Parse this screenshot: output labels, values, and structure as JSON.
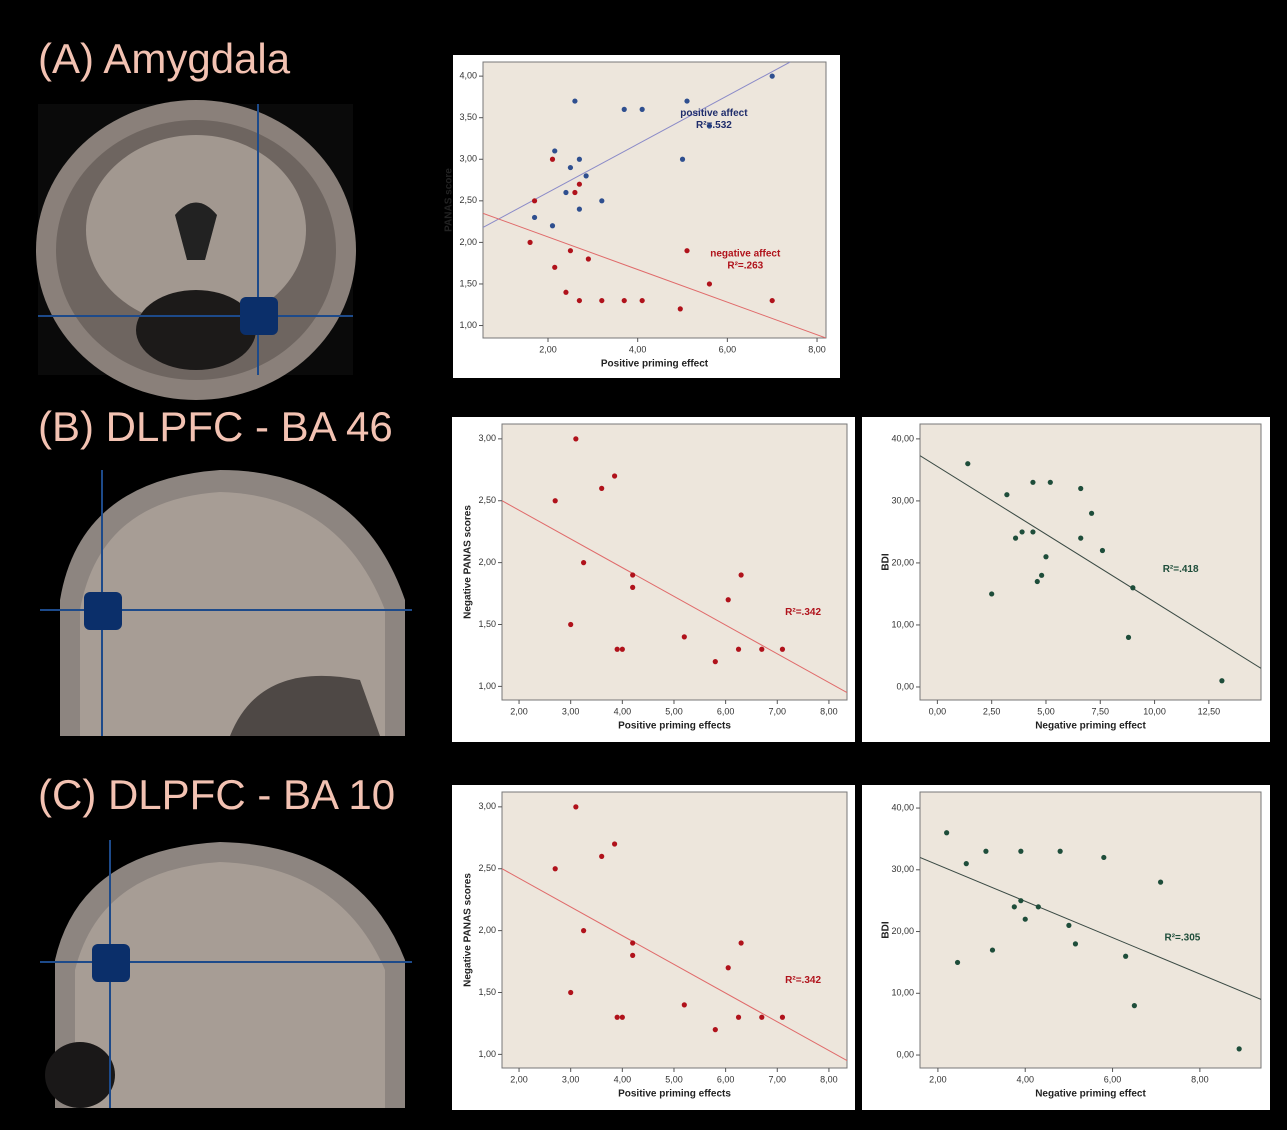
{
  "panels": [
    {
      "label": "(A) Amygdala"
    },
    {
      "label": "(B) DLPFC - BA 46"
    },
    {
      "label": "(C) DLPFC - BA 10"
    }
  ],
  "chart_data": [
    {
      "type": "scatter",
      "xlabel": "Positive priming effect",
      "ylabel": "PANAS score",
      "xlim": [
        0.55,
        8.2
      ],
      "ylim": [
        0.85,
        4.17
      ],
      "xticks": [
        {
          "value": 2,
          "label": "2,00"
        },
        {
          "value": 4,
          "label": "4,00"
        },
        {
          "value": 6,
          "label": "6,00"
        },
        {
          "value": 8,
          "label": "8,00"
        }
      ],
      "yticks": [
        {
          "value": 1,
          "label": "1,00"
        },
        {
          "value": 1.5,
          "label": "1,50"
        },
        {
          "value": 2,
          "label": "2,00"
        },
        {
          "value": 2.5,
          "label": "2,50"
        },
        {
          "value": 3,
          "label": "3,00"
        },
        {
          "value": 3.5,
          "label": "3,50"
        },
        {
          "value": 4,
          "label": "4,00"
        }
      ],
      "series": [
        {
          "color": "#2f4f8f",
          "x": [
            1.7,
            2.1,
            2.15,
            2.4,
            2.5,
            2.6,
            2.7,
            2.7,
            2.85,
            3.2,
            3.7,
            4.1,
            5.0,
            5.1,
            5.6,
            7.0
          ],
          "values": [
            2.3,
            2.2,
            3.1,
            2.6,
            2.9,
            3.7,
            3.0,
            2.4,
            2.8,
            2.5,
            3.6,
            3.6,
            3.0,
            3.7,
            3.4,
            4.0
          ]
        },
        {
          "color": "#b0121b",
          "x": [
            1.6,
            1.7,
            2.1,
            2.15,
            2.4,
            2.5,
            2.6,
            2.7,
            2.7,
            2.9,
            3.2,
            3.7,
            4.1,
            4.95,
            5.1,
            5.6,
            7.0
          ],
          "values": [
            2.0,
            2.5,
            3.0,
            1.7,
            1.4,
            1.9,
            2.6,
            2.7,
            1.3,
            1.8,
            1.3,
            1.3,
            1.3,
            1.2,
            1.9,
            1.5,
            1.3
          ]
        }
      ],
      "fits": [
        {
          "color": "#8a8ac8",
          "x": [
            0.55,
            7.4
          ],
          "y": [
            2.18,
            4.17
          ]
        },
        {
          "color": "#e06a6a",
          "x": [
            0.55,
            8.2
          ],
          "y": [
            2.35,
            0.85
          ]
        }
      ],
      "annotations": [
        {
          "text": "positive affect",
          "x": 5.7,
          "y": 3.55,
          "color": "#1f2d6b"
        },
        {
          "text": "R²=.532",
          "x": 5.7,
          "y": 3.41,
          "color": "#1f2d6b"
        },
        {
          "text": "negative affect",
          "x": 6.4,
          "y": 1.86,
          "color": "#b0121b"
        },
        {
          "text": "R²=.263",
          "x": 6.4,
          "y": 1.72,
          "color": "#b0121b"
        }
      ]
    },
    {
      "type": "scatter",
      "xlabel": "Positive priming effects",
      "ylabel": "Negative PANAS scores",
      "xlim": [
        1.67,
        8.35
      ],
      "ylim": [
        0.89,
        3.12
      ],
      "xticks": [
        {
          "value": 2,
          "label": "2,00"
        },
        {
          "value": 3,
          "label": "3,00"
        },
        {
          "value": 4,
          "label": "4,00"
        },
        {
          "value": 5,
          "label": "5,00"
        },
        {
          "value": 6,
          "label": "6,00"
        },
        {
          "value": 7,
          "label": "7,00"
        },
        {
          "value": 8,
          "label": "8,00"
        }
      ],
      "yticks": [
        {
          "value": 1,
          "label": "1,00"
        },
        {
          "value": 1.5,
          "label": "1,50"
        },
        {
          "value": 2,
          "label": "2,00"
        },
        {
          "value": 2.5,
          "label": "2,50"
        },
        {
          "value": 3,
          "label": "3,00"
        }
      ],
      "series": [
        {
          "color": "#b0121b",
          "x": [
            3.1,
            2.7,
            3.85,
            3.6,
            3.25,
            4.2,
            4.2,
            3.0,
            3.9,
            4.0,
            5.2,
            6.05,
            6.3,
            5.8,
            6.25,
            6.7,
            7.1
          ],
          "values": [
            3.0,
            2.5,
            2.7,
            2.6,
            2.0,
            1.9,
            1.8,
            1.5,
            1.3,
            1.3,
            1.4,
            1.7,
            1.9,
            1.2,
            1.3,
            1.3,
            1.3
          ]
        }
      ],
      "fits": [
        {
          "color": "#e06a6a",
          "x": [
            1.67,
            8.35
          ],
          "y": [
            2.5,
            0.95
          ]
        }
      ],
      "annotations": [
        {
          "text": "R²=.342",
          "x": 7.5,
          "y": 1.6,
          "color": "#b0121b"
        }
      ]
    },
    {
      "type": "scatter",
      "xlabel": "Negative priming effect",
      "ylabel": "BDI",
      "xlim": [
        -0.8,
        14.9
      ],
      "ylim": [
        -2.1,
        42.4
      ],
      "xticks": [
        {
          "value": 0,
          "label": "0,00"
        },
        {
          "value": 2.5,
          "label": "2,50"
        },
        {
          "value": 5,
          "label": "5,00"
        },
        {
          "value": 7.5,
          "label": "7,50"
        },
        {
          "value": 10,
          "label": "10,00"
        },
        {
          "value": 12.5,
          "label": "12,50"
        }
      ],
      "yticks": [
        {
          "value": 0,
          "label": "0,00"
        },
        {
          "value": 10,
          "label": "10,00"
        },
        {
          "value": 20,
          "label": "20,00"
        },
        {
          "value": 30,
          "label": "30,00"
        },
        {
          "value": 40,
          "label": "40,00"
        }
      ],
      "series": [
        {
          "color": "#1e4d3a",
          "x": [
            1.4,
            2.5,
            3.2,
            3.6,
            3.9,
            4.4,
            4.4,
            4.6,
            4.8,
            5.0,
            5.2,
            6.6,
            6.6,
            7.1,
            7.6,
            8.8,
            9.0,
            13.1
          ],
          "values": [
            36,
            15,
            31,
            24,
            25,
            33,
            25,
            17,
            18,
            21,
            33,
            32,
            24,
            28,
            22,
            8,
            16,
            1
          ]
        }
      ],
      "fits": [
        {
          "color": "#3a4a44",
          "x": [
            -0.8,
            14.9
          ],
          "y": [
            37.3,
            3
          ]
        }
      ],
      "annotations": [
        {
          "text": "R²=.418",
          "x": 11.2,
          "y": 19,
          "color": "#1e4d3a"
        }
      ]
    },
    {
      "type": "scatter",
      "xlabel": "Positive priming effects",
      "ylabel": "Negative PANAS scores",
      "xlim": [
        1.67,
        8.35
      ],
      "ylim": [
        0.89,
        3.12
      ],
      "xticks": [
        {
          "value": 2,
          "label": "2,00"
        },
        {
          "value": 3,
          "label": "3,00"
        },
        {
          "value": 4,
          "label": "4,00"
        },
        {
          "value": 5,
          "label": "5,00"
        },
        {
          "value": 6,
          "label": "6,00"
        },
        {
          "value": 7,
          "label": "7,00"
        },
        {
          "value": 8,
          "label": "8,00"
        }
      ],
      "yticks": [
        {
          "value": 1,
          "label": "1,00"
        },
        {
          "value": 1.5,
          "label": "1,50"
        },
        {
          "value": 2,
          "label": "2,00"
        },
        {
          "value": 2.5,
          "label": "2,50"
        },
        {
          "value": 3,
          "label": "3,00"
        }
      ],
      "series": [
        {
          "color": "#b0121b",
          "x": [
            3.1,
            2.7,
            3.85,
            3.6,
            3.25,
            4.2,
            4.2,
            3.0,
            3.9,
            4.0,
            5.2,
            6.05,
            6.3,
            5.8,
            6.25,
            6.7,
            7.1
          ],
          "values": [
            3.0,
            2.5,
            2.7,
            2.6,
            2.0,
            1.9,
            1.8,
            1.5,
            1.3,
            1.3,
            1.4,
            1.7,
            1.9,
            1.2,
            1.3,
            1.3,
            1.3
          ]
        }
      ],
      "fits": [
        {
          "color": "#e06a6a",
          "x": [
            1.67,
            8.35
          ],
          "y": [
            2.5,
            0.95
          ]
        }
      ],
      "annotations": [
        {
          "text": "R²=.342",
          "x": 7.5,
          "y": 1.6,
          "color": "#b0121b"
        }
      ]
    },
    {
      "type": "scatter",
      "xlabel": "Negative priming effect",
      "ylabel": "BDI",
      "xlim": [
        1.59,
        9.4
      ],
      "ylim": [
        -2.1,
        42.6
      ],
      "xticks": [
        {
          "value": 2,
          "label": "2,00"
        },
        {
          "value": 4,
          "label": "4,00"
        },
        {
          "value": 6,
          "label": "6,00"
        },
        {
          "value": 8,
          "label": "8,00"
        }
      ],
      "yticks": [
        {
          "value": 0,
          "label": "0,00"
        },
        {
          "value": 10,
          "label": "10,00"
        },
        {
          "value": 20,
          "label": "20,00"
        },
        {
          "value": 30,
          "label": "30,00"
        },
        {
          "value": 40,
          "label": "40,00"
        }
      ],
      "series": [
        {
          "color": "#1e4d3a",
          "x": [
            2.2,
            2.45,
            2.65,
            3.1,
            3.25,
            3.75,
            3.9,
            3.9,
            4.0,
            4.3,
            4.8,
            5.0,
            5.15,
            5.8,
            6.3,
            6.5,
            7.1,
            8.9
          ],
          "values": [
            36,
            15,
            31,
            33,
            17,
            24,
            33,
            25,
            22,
            24,
            33,
            21,
            18,
            32,
            16,
            8,
            28,
            1
          ]
        }
      ],
      "fits": [
        {
          "color": "#3a4a44",
          "x": [
            1.59,
            9.4
          ],
          "y": [
            32,
            9
          ]
        }
      ],
      "annotations": [
        {
          "text": "R²=.305",
          "x": 7.6,
          "y": 19,
          "color": "#1e4d3a"
        }
      ]
    }
  ]
}
